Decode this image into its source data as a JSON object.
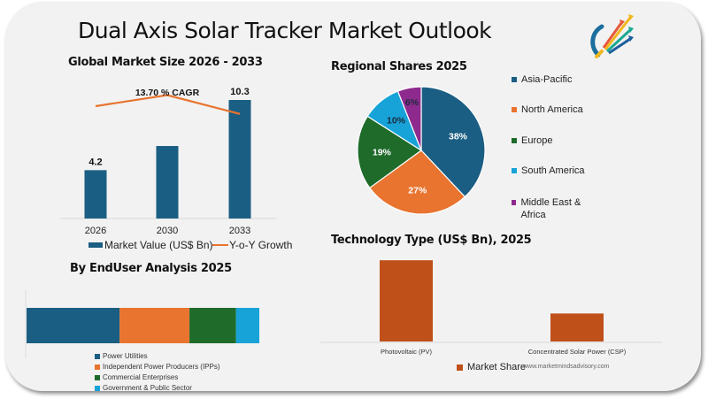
{
  "page": {
    "title": "Dual Axis Solar Tracker Market Outlook",
    "watermark": "www.marketmindsadvisory.com",
    "logo_icon": "growth-arrows-logo-icon"
  },
  "colors": {
    "dark_blue": "#1b5e83",
    "orange": "#e8742f",
    "green": "#1e6b2a",
    "light_blue": "#17a2d8",
    "purple": "#8e2a8e",
    "rust": "#c0501a",
    "background": "#f2f2f2"
  },
  "chart_data": [
    {
      "id": "global-market",
      "type": "bar",
      "title": "Global Market Size 2026 - 2033",
      "categories": [
        "2026",
        "2030",
        "2033"
      ],
      "series": [
        {
          "name": "Market Value (US$ Bn)",
          "type": "bar",
          "values": [
            4.2,
            6.3,
            10.3
          ],
          "data_labels": [
            "4.2",
            "",
            "10.3"
          ],
          "color": "#1b5e83"
        },
        {
          "name": "Y-o-Y Growth",
          "type": "line",
          "values": [
            14.0,
            15.0,
            13.3
          ],
          "color": "#e8742f"
        }
      ],
      "annotation": "13.70 % CAGR",
      "xlabel": "",
      "ylabel": "",
      "ylim": [
        0,
        12
      ],
      "grid": false,
      "legend": "bottom"
    },
    {
      "id": "regional-shares",
      "type": "pie",
      "title": "Regional Shares 2025",
      "labels": [
        "Asia-Pacific",
        "North America",
        "Europe",
        "South America",
        "Middle East & Africa"
      ],
      "values": [
        38,
        27,
        19,
        10,
        6
      ],
      "data_labels": [
        "38%",
        "27%",
        "19%",
        "10%",
        "6%"
      ],
      "colors": [
        "#1b5e83",
        "#e8742f",
        "#1e6b2a",
        "#17a2d8",
        "#8e2a8e"
      ],
      "legend": "right"
    },
    {
      "id": "enduser",
      "type": "bar",
      "orientation": "horizontal-stacked",
      "title": "By  EndUser Analysis 2025",
      "categories": [
        "2025"
      ],
      "series": [
        {
          "name": "Power Utilities",
          "values": [
            40
          ],
          "color": "#1b5e83"
        },
        {
          "name": "Independent Power Producers (IPPs)",
          "values": [
            30
          ],
          "color": "#e8742f"
        },
        {
          "name": "Commercial Enterprises",
          "values": [
            20
          ],
          "color": "#1e6b2a"
        },
        {
          "name": "Government & Public Sector",
          "values": [
            10
          ],
          "color": "#17a2d8"
        }
      ],
      "legend": "bottom"
    },
    {
      "id": "technology",
      "type": "bar",
      "title": "Technology Type (US$ Bn), 2025",
      "categories": [
        "Photovoltaic (PV)",
        "Concentrated Solar Power (CSP)"
      ],
      "series": [
        {
          "name": "Market Share",
          "values": [
            2.9,
            1.0
          ],
          "color": "#c0501a"
        }
      ],
      "ylim": [
        0,
        3.0
      ],
      "legend": "bottom"
    }
  ]
}
